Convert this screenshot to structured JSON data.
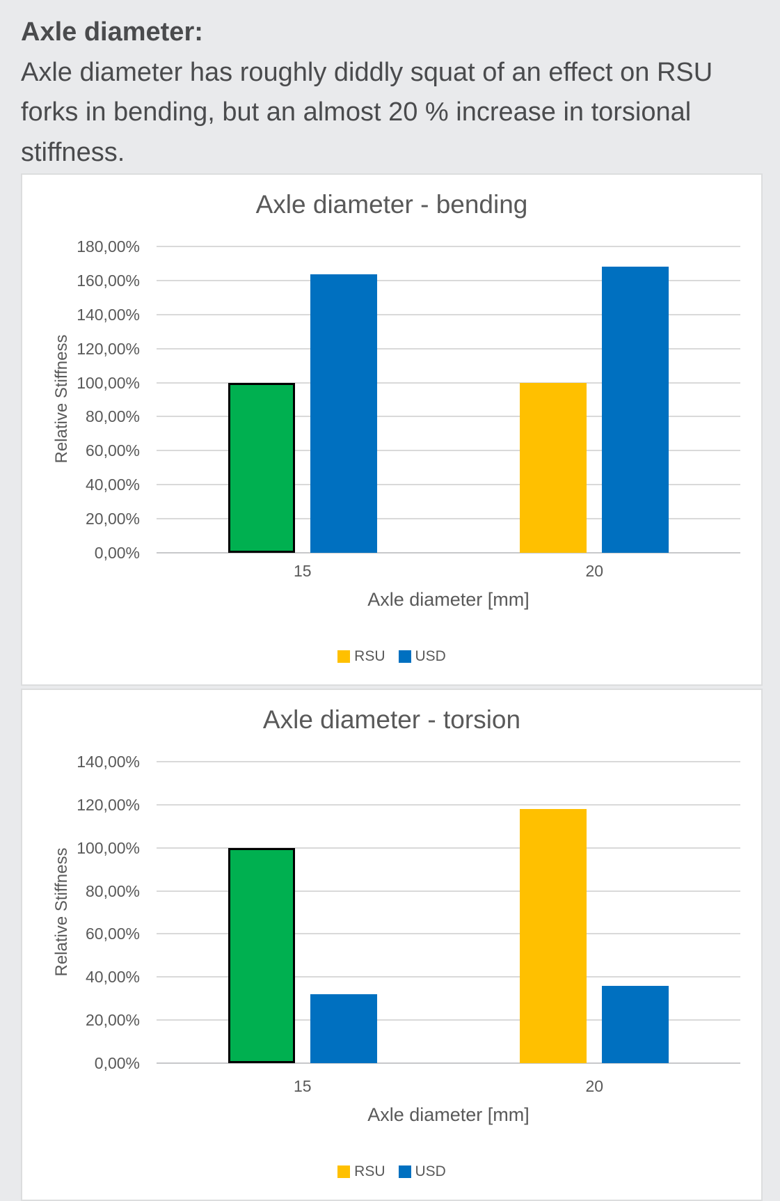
{
  "page_background": "#e9eaec",
  "intro": {
    "heading": "Axle diameter:",
    "body": "Axle diameter has roughly diddly squat of an effect on RSU forks in bending, but an almost 20 % increase in torsional stiffness."
  },
  "chart_data": [
    {
      "type": "bar",
      "title": "Axle diameter - bending",
      "categories": [
        "15",
        "20"
      ],
      "series": [
        {
          "name": "RSU",
          "values": [
            100.0,
            100.0
          ],
          "color": "#FFC000"
        },
        {
          "name": "USD",
          "values": [
            163.5,
            168.0
          ],
          "color": "#0070C0"
        }
      ],
      "highlight_point": {
        "series": "RSU",
        "category": "15",
        "fill": "#00B050",
        "outline": "#000000"
      },
      "xlabel": "Axle diameter [mm]",
      "ylabel": "Relative Stiffness",
      "ylim": [
        0,
        180
      ],
      "ytick_step": 20,
      "ytick_format": "percent-comma-2dp",
      "grid": true,
      "legend_position": "bottom"
    },
    {
      "type": "bar",
      "title": "Axle diameter - torsion",
      "categories": [
        "15",
        "20"
      ],
      "series": [
        {
          "name": "RSU",
          "values": [
            100.0,
            118.0
          ],
          "color": "#FFC000"
        },
        {
          "name": "USD",
          "values": [
            32.0,
            36.0
          ],
          "color": "#0070C0"
        }
      ],
      "highlight_point": {
        "series": "RSU",
        "category": "15",
        "fill": "#00B050",
        "outline": "#000000"
      },
      "xlabel": "Axle diameter [mm]",
      "ylabel": "Relative Stiffness",
      "ylim": [
        0,
        140
      ],
      "ytick_step": 20,
      "ytick_format": "percent-comma-2dp",
      "grid": true,
      "legend_position": "bottom"
    }
  ]
}
